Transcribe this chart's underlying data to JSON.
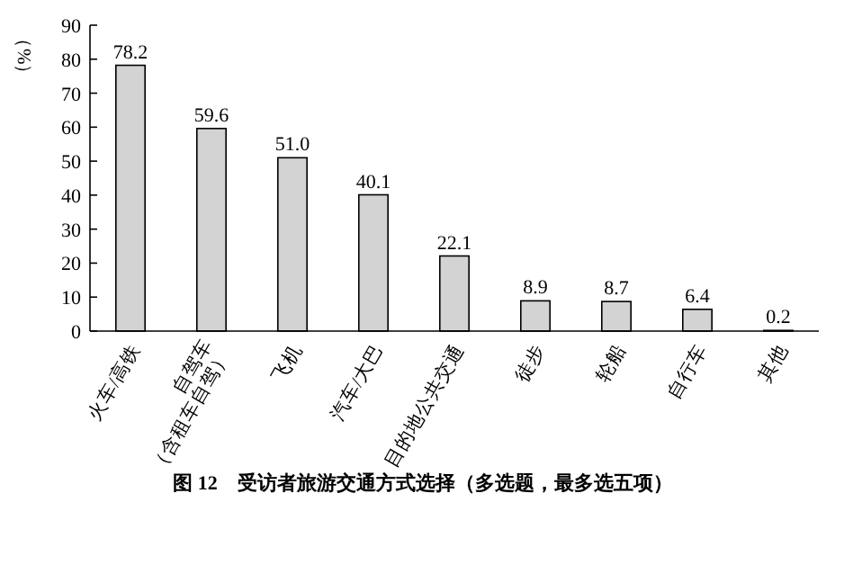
{
  "chart_data": {
    "type": "bar",
    "title": "图 12　受访者旅游交通方式选择（多选题，最多选五项）",
    "ylabel": "（%）",
    "categories": [
      "火车/高铁",
      "自驾车\n（含租车自驾）",
      "飞机",
      "汽车/大巴",
      "目的地公共交通",
      "徒步",
      "轮船",
      "自行车",
      "其他"
    ],
    "values": [
      78.2,
      59.6,
      51.0,
      40.1,
      22.1,
      8.9,
      8.7,
      6.4,
      0.2
    ],
    "value_labels": [
      "78.2",
      "59.6",
      "51.0",
      "40.1",
      "22.1",
      "8.9",
      "8.7",
      "6.4",
      "0.2"
    ],
    "color": "#d3d3d3",
    "ylim": [
      0,
      90
    ],
    "yticks": [
      0,
      10,
      20,
      30,
      40,
      50,
      60,
      70,
      80,
      90
    ]
  }
}
